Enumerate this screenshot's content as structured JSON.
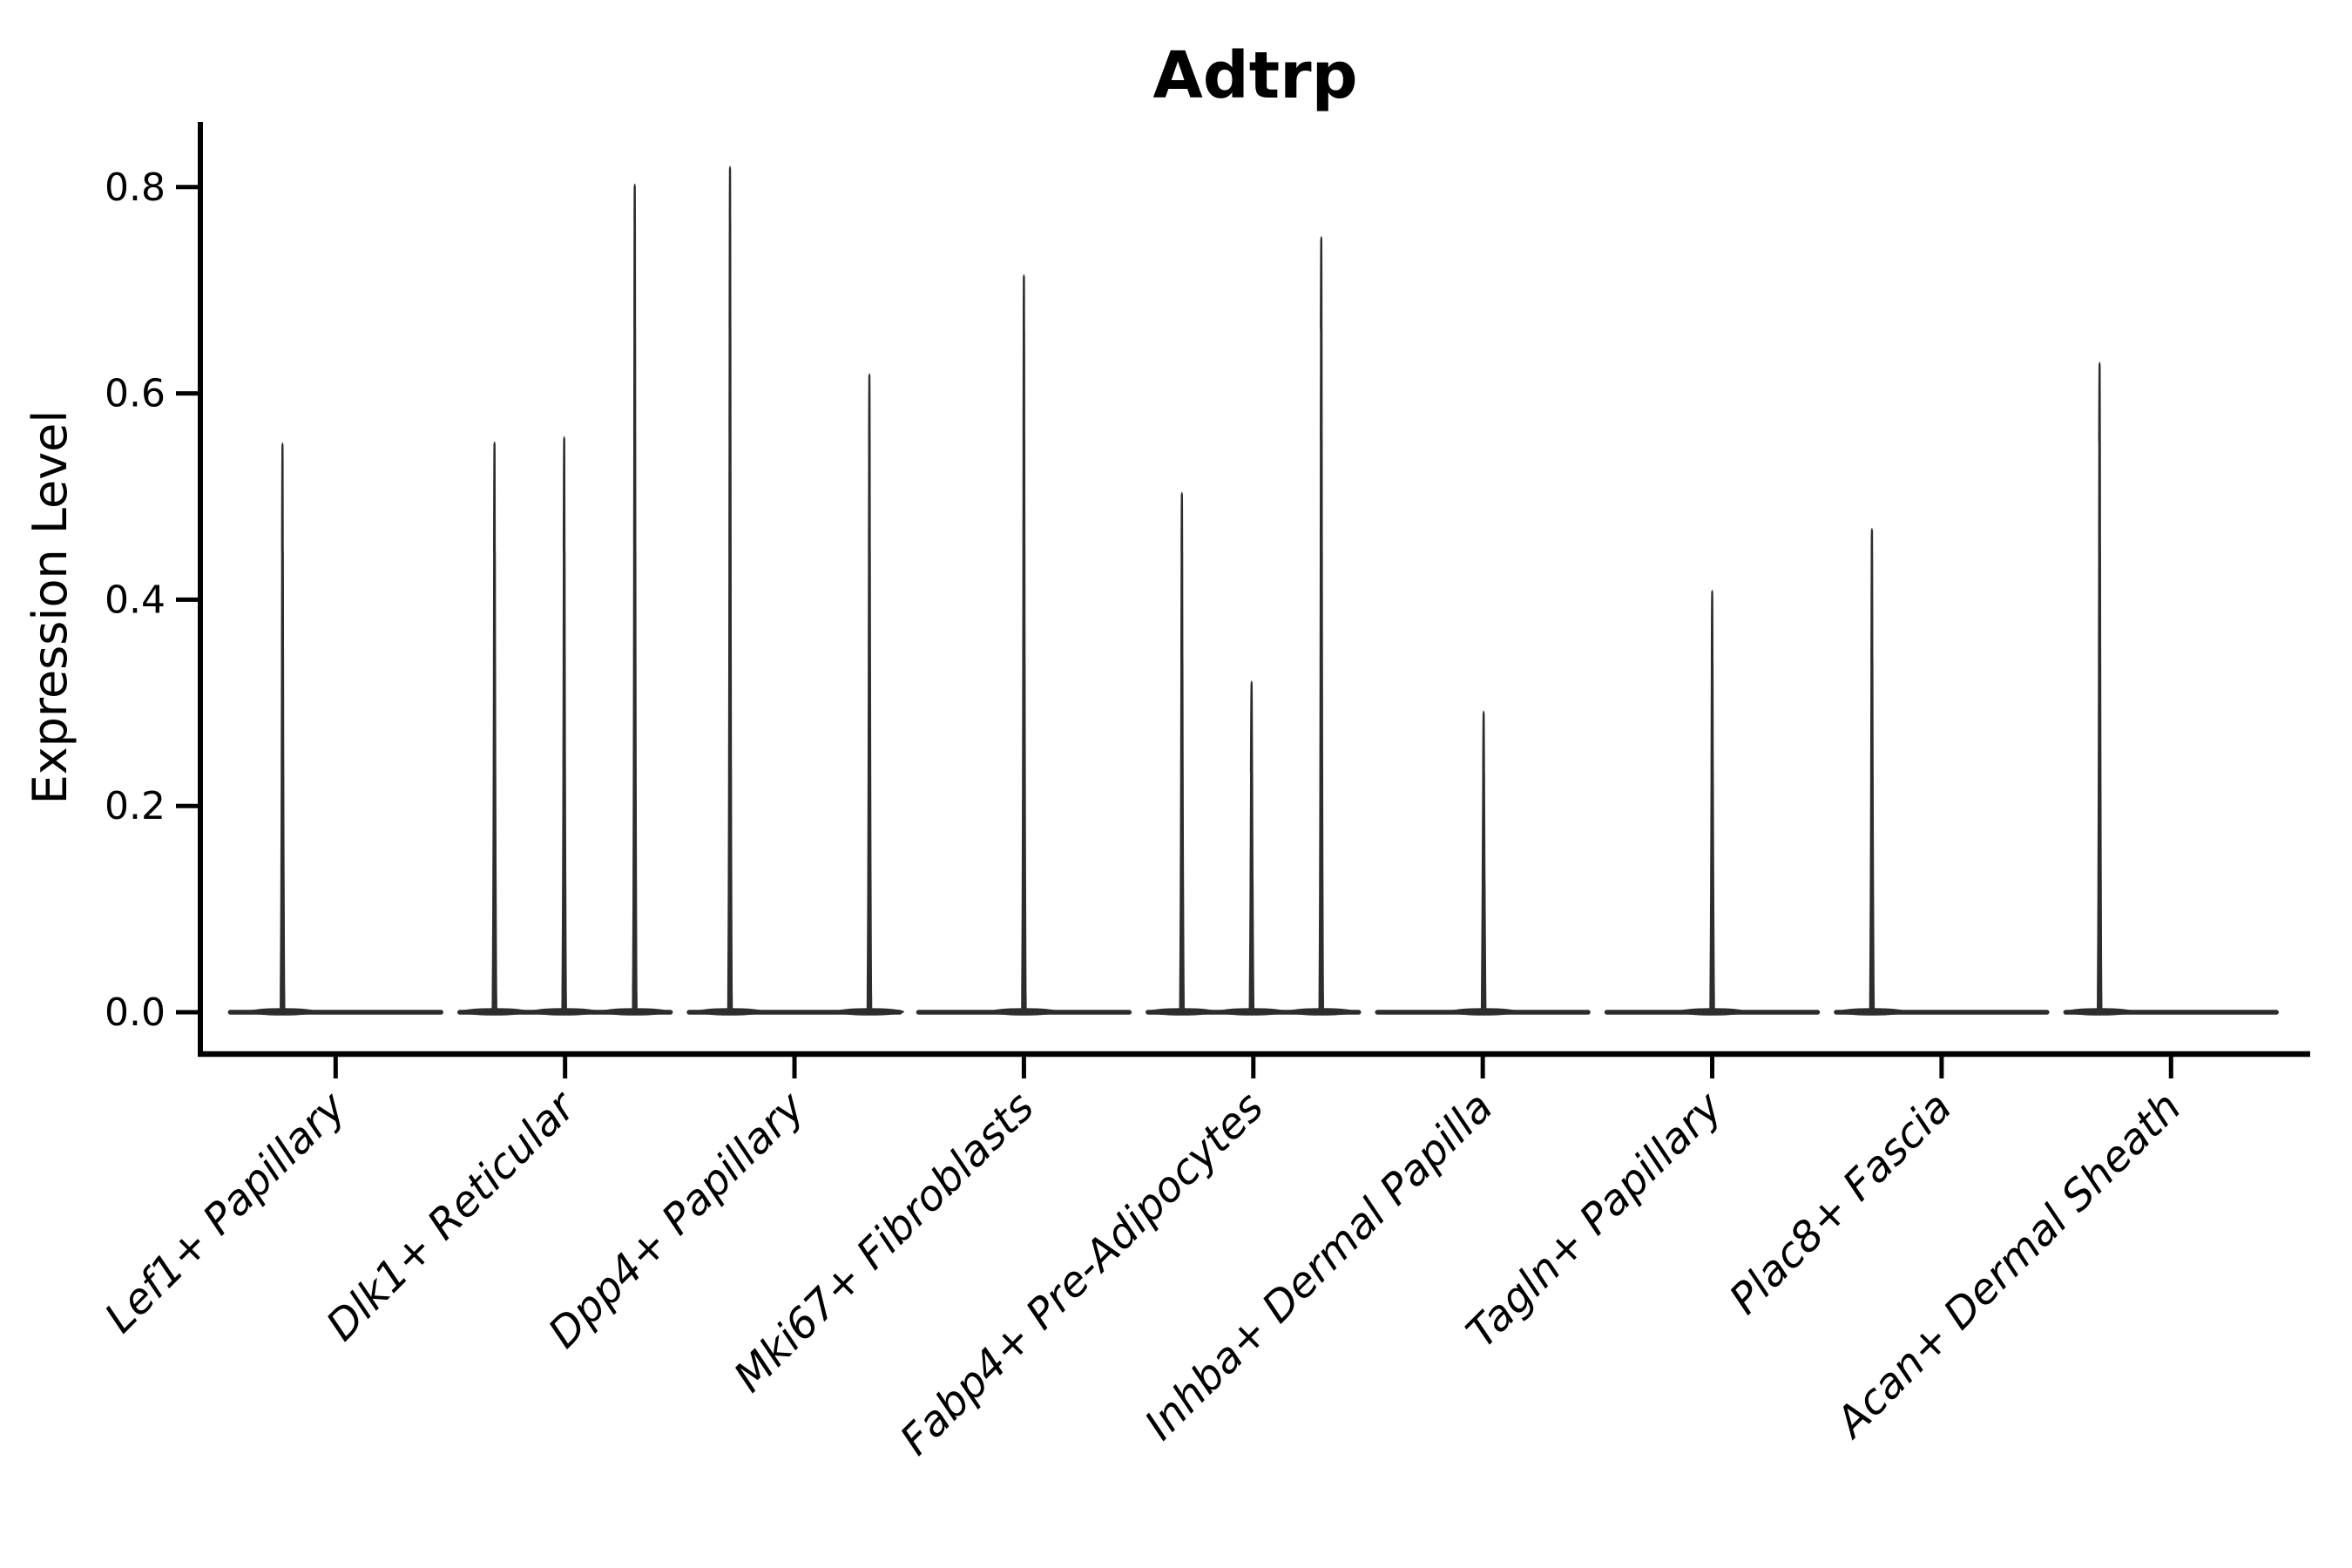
{
  "chart_data": {
    "type": "violin",
    "title": "Adtrp",
    "xlabel": "",
    "ylabel": "Expression Level",
    "ylim": [
      0,
      0.87
    ],
    "yticks": [
      0.0,
      0.2,
      0.4,
      0.6,
      0.8
    ],
    "grid": false,
    "legend": "none",
    "description": "Violin plot of Adtrp expression per fibroblast subtype; each violin is a flat mass at 0 with thin spikes rising to the maximum expression values.",
    "categories": [
      "Lef1+ Papillary",
      "Dlk1+ Reticular",
      "Dpp4+ Papillary",
      "Mki67+ Fibroblasts",
      "Fabp4+ Pre-Adipocytes",
      "Inhba+ Dermal Papilla",
      "Tagln+ Papillary",
      "Plac8+ Fascia",
      "Acan+ Dermal Sheath"
    ],
    "series": [
      {
        "name": "Lef1+ Papillary",
        "spikes": [
          {
            "dx": -61,
            "value": 0.553
          }
        ]
      },
      {
        "name": "Dlk1+ Reticular",
        "spikes": [
          {
            "dx": -81,
            "value": 0.554
          },
          {
            "dx": -1,
            "value": 0.559
          },
          {
            "dx": 80,
            "value": 0.804
          }
        ]
      },
      {
        "name": "Dpp4+ Papillary",
        "spikes": [
          {
            "dx": -74,
            "value": 0.821
          },
          {
            "dx": 86,
            "value": 0.62
          }
        ]
      },
      {
        "name": "Mki67+ Fibroblasts",
        "spikes": [
          {
            "dx": 0,
            "value": 0.716
          }
        ]
      },
      {
        "name": "Fabp4+ Pre-Adipocytes",
        "spikes": [
          {
            "dx": -82,
            "value": 0.505
          },
          {
            "dx": -2,
            "value": 0.322
          },
          {
            "dx": 78,
            "value": 0.753
          }
        ]
      },
      {
        "name": "Inhba+ Dermal Papilla",
        "spikes": [
          {
            "dx": 1,
            "value": 0.293
          }
        ]
      },
      {
        "name": "Tagln+ Papillary",
        "spikes": [
          {
            "dx": 0,
            "value": 0.41
          }
        ]
      },
      {
        "name": "Plac8+ Fascia",
        "spikes": [
          {
            "dx": -80,
            "value": 0.47
          }
        ]
      },
      {
        "name": "Acan+ Dermal Sheath",
        "spikes": [
          {
            "dx": -82,
            "value": 0.631
          }
        ]
      }
    ],
    "colors": {
      "violin": "#2d2d2d",
      "axis": "#000000",
      "text": "#000000",
      "background": "#ffffff"
    }
  }
}
